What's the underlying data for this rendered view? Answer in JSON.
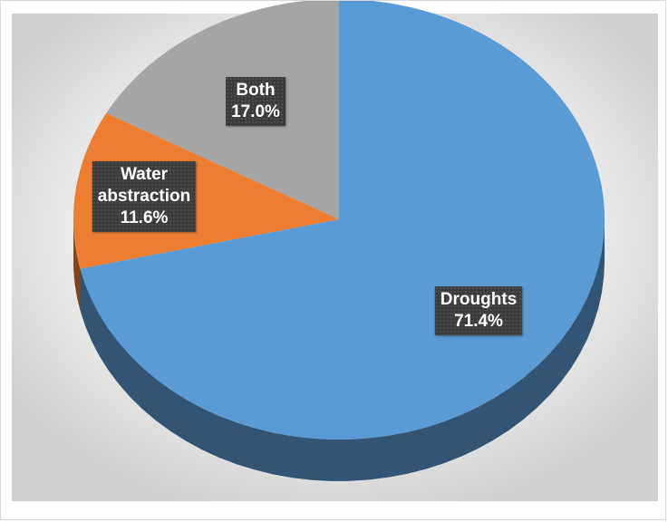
{
  "chart_data": {
    "type": "pie",
    "style": "3d",
    "title": "",
    "start_angle_deg": 0,
    "direction": "clockwise",
    "slices": [
      {
        "label": "Droughts",
        "value": 71.4,
        "pct_label": "71.4%",
        "color": "#5b9bd5"
      },
      {
        "label": "Water abstraction",
        "value": 11.6,
        "pct_label": "11.6%",
        "color": "#ed7d31"
      },
      {
        "label": "Both",
        "value": 17.0,
        "pct_label": "17.0%",
        "color": "#a5a5a5"
      }
    ],
    "label_style": "dark boxes inside slices",
    "legend": "none"
  },
  "label_lines": [
    [
      "Droughts",
      "71.4%"
    ],
    [
      "Water",
      "abstraction",
      "11.6%"
    ],
    [
      "Both",
      "17.0%"
    ]
  ]
}
